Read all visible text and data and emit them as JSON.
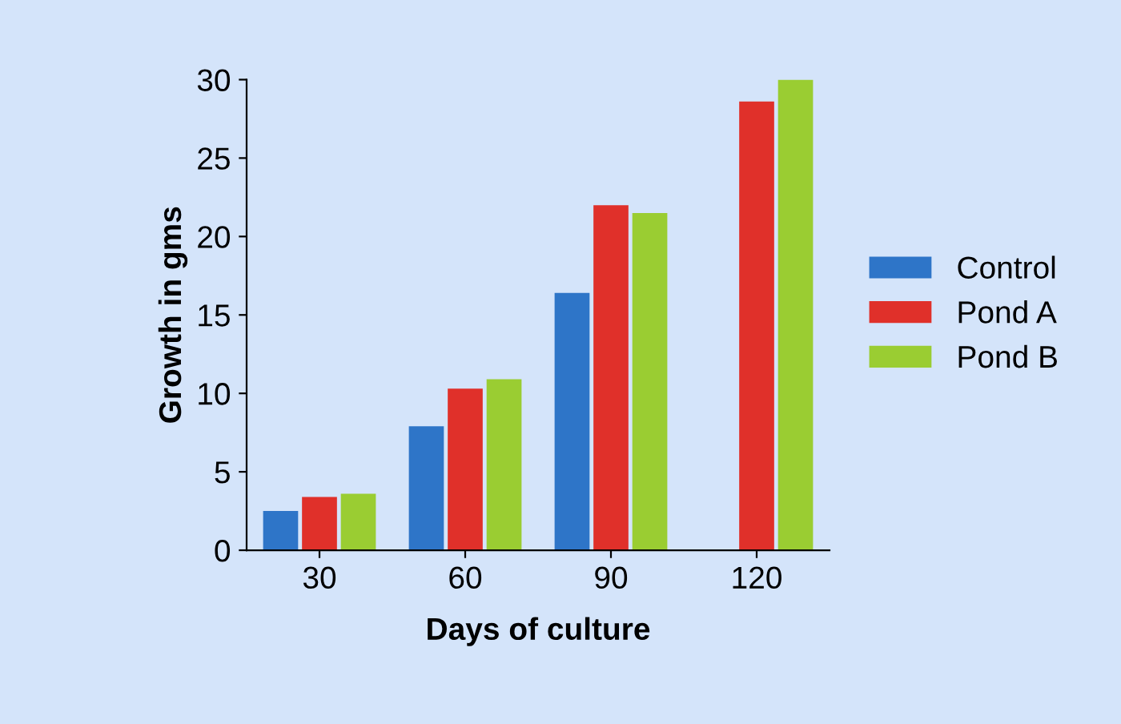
{
  "chart_data": {
    "type": "bar",
    "xlabel": "Days of culture",
    "ylabel": "Growth in gms",
    "categories": [
      "30",
      "60",
      "90",
      "120"
    ],
    "series": [
      {
        "name": "Control",
        "color": "#2e75c8",
        "values": [
          2.5,
          7.9,
          16.4,
          0
        ]
      },
      {
        "name": "Pond A",
        "color": "#e0302a",
        "values": [
          3.4,
          10.3,
          22,
          28.6
        ]
      },
      {
        "name": "Pond B",
        "color": "#9acd32",
        "values": [
          3.6,
          10.9,
          21.5,
          30
        ]
      }
    ],
    "ylim": [
      0,
      30
    ],
    "yticks": [
      0,
      5,
      10,
      15,
      20,
      25,
      30
    ],
    "grid": false,
    "legend": "right"
  }
}
